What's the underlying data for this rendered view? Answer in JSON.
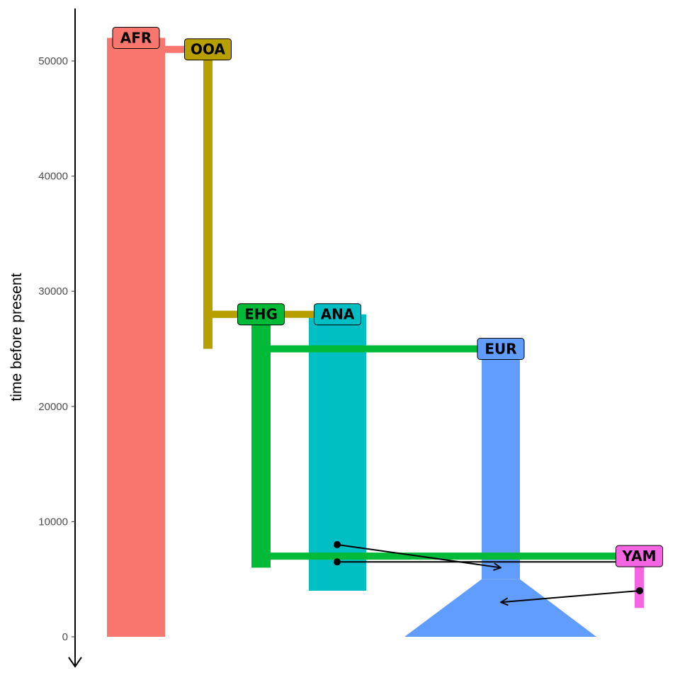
{
  "axis": {
    "ylabel": "time before present",
    "ticks": [
      {
        "value": 0,
        "label": "0"
      },
      {
        "value": 10000,
        "label": "10000"
      },
      {
        "value": 20000,
        "label": "20000"
      },
      {
        "value": 30000,
        "label": "30000"
      },
      {
        "value": 40000,
        "label": "40000"
      },
      {
        "value": 50000,
        "label": "50000"
      }
    ]
  },
  "populations": [
    {
      "id": "AFR",
      "label": "AFR",
      "color": "#F8766D",
      "start": 52000,
      "end": 0
    },
    {
      "id": "OOA",
      "label": "OOA",
      "color": "#B79F00",
      "start": 51000,
      "end": 25000
    },
    {
      "id": "EHG",
      "label": "EHG",
      "color": "#00BA38",
      "start": 28000,
      "end": 6000
    },
    {
      "id": "ANA",
      "label": "ANA",
      "color": "#00BFC4",
      "start": 28000,
      "end": 4000
    },
    {
      "id": "EUR",
      "label": "EUR",
      "color": "#619CFF",
      "start": 25000,
      "end": 0
    },
    {
      "id": "YAM",
      "label": "YAM",
      "color": "#F564E3",
      "start": 7000,
      "end": 2500
    }
  ],
  "splits": [
    {
      "from": "AFR",
      "to": "OOA",
      "time": 51000
    },
    {
      "from": "OOA",
      "to": "EHG",
      "time": 28000
    },
    {
      "from": "OOA",
      "to": "ANA",
      "time": 28000
    },
    {
      "from": "EHG",
      "to": "EUR",
      "time": 25000
    },
    {
      "from": "EHG",
      "to": "YAM",
      "time": 7000
    }
  ],
  "gene_flows": [
    {
      "from": "ANA",
      "to": "YAM",
      "start_time": 6500
    },
    {
      "from": "ANA",
      "to": "EUR",
      "start_time": 8000,
      "end_time": 6000
    },
    {
      "from": "YAM",
      "to": "EUR",
      "start_time": 4000,
      "end_time": 3000
    }
  ]
}
